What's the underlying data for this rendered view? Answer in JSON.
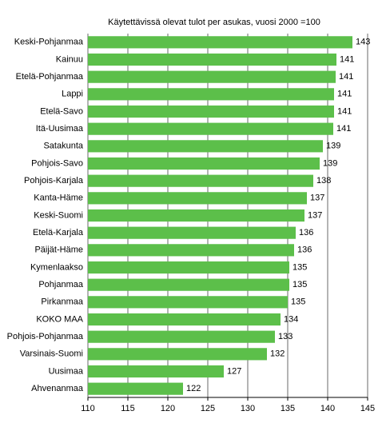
{
  "chart_data": {
    "type": "bar",
    "orientation": "horizontal",
    "title": "Käytettävissä olevat tulot per asukas, vuosi 2000 =100",
    "categories": [
      "Keski-Pohjanmaa",
      "Kainuu",
      "Etelä-Pohjanmaa",
      "Lappi",
      "Etelä-Savo",
      "Itä-Uusimaa",
      "Satakunta",
      "Pohjois-Savo",
      "Pohjois-Karjala",
      "Kanta-Häme",
      "Keski-Suomi",
      "Etelä-Karjala",
      "Päijät-Häme",
      "Kymenlaakso",
      "Pohjanmaa",
      "Pirkanmaa",
      "KOKO MAA",
      "Pohjois-Pohjanmaa",
      "Varsinais-Suomi",
      "Uusimaa",
      "Ahvenanmaa"
    ],
    "values": [
      143.1,
      141.1,
      141.0,
      140.8,
      140.8,
      140.7,
      139.4,
      139.0,
      138.2,
      137.4,
      137.1,
      136.0,
      135.8,
      135.2,
      135.2,
      135.0,
      134.1,
      133.4,
      132.4,
      127.0,
      121.9
    ],
    "value_labels": [
      "143",
      "141",
      "141",
      "141",
      "141",
      "141",
      "139",
      "139",
      "138",
      "137",
      "137",
      "136",
      "136",
      "135",
      "135",
      "135",
      "134",
      "133",
      "132",
      "127",
      "122"
    ],
    "color": "#5cbf4a",
    "xlim": [
      110,
      145
    ],
    "xticks": [
      110,
      115,
      120,
      125,
      130,
      135,
      140,
      145
    ],
    "grid": true
  }
}
